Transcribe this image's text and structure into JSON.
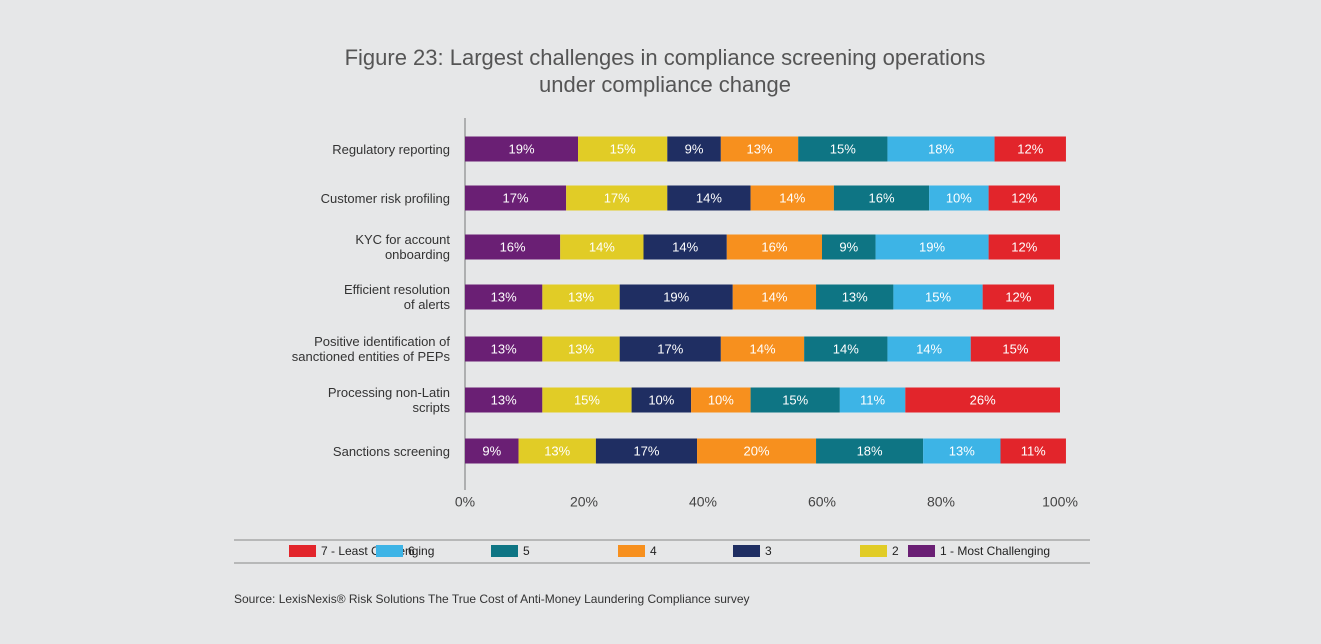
{
  "chart_data": {
    "type": "stacked-bar-horizontal",
    "title": "Figure 23: Largest challenges in compliance screening operations\nunder compliance change",
    "categories": [
      "Regulatory reporting",
      "Customer risk profiling",
      "KYC for account\nonboarding",
      "Efficient resolution\nof alerts",
      "Positive identification of\nsanctioned entities of PEPs",
      "Processing non-Latin\nscripts",
      "Sanctions screening"
    ],
    "series": [
      {
        "name": "1 - Most Challenging",
        "color": "#6a1f74",
        "values": [
          19,
          17,
          16,
          13,
          13,
          13,
          9
        ],
        "value_labels": [
          "19%",
          "17%",
          "16%",
          "13%",
          "13%",
          "13%",
          "9%"
        ]
      },
      {
        "name": "2",
        "color": "#e1cc26",
        "values": [
          15,
          17,
          14,
          13,
          13,
          15,
          13
        ],
        "value_labels": [
          "15%",
          "17%",
          "14%",
          "13%",
          "13%",
          "15%",
          "13%"
        ]
      },
      {
        "name": "3",
        "color": "#1f2e62",
        "values": [
          9,
          14,
          14,
          19,
          17,
          10,
          17
        ],
        "value_labels": [
          "9%",
          "14%",
          "14%",
          "19%",
          "17%",
          "10%",
          "17%"
        ]
      },
      {
        "name": "4",
        "color": "#f7901e",
        "values": [
          13,
          14,
          16,
          14,
          14,
          10,
          20
        ],
        "value_labels": [
          "13%",
          "14%",
          "16%",
          "14%",
          "14%",
          "10%",
          "20%"
        ]
      },
      {
        "name": "5",
        "color": "#0e7584",
        "values": [
          15,
          16,
          9,
          13,
          14,
          15,
          18
        ],
        "value_labels": [
          "15%",
          "16%",
          "9%",
          "13%",
          "14%",
          "15%",
          "18%"
        ]
      },
      {
        "name": "6",
        "color": "#3db4e6",
        "values": [
          18,
          10,
          19,
          15,
          14,
          11,
          13
        ],
        "value_labels": [
          "18%",
          "10%",
          "19%",
          "15%",
          "14%",
          "11%",
          "13%"
        ]
      },
      {
        "name": "7 - Least Challenging",
        "color": "#e2252b",
        "values": [
          12,
          12,
          12,
          12,
          15,
          26,
          11
        ],
        "value_labels": [
          "12%",
          "12%",
          "12%",
          "12%",
          "15%",
          "26%",
          "11%"
        ]
      }
    ],
    "xlim": [
      0,
      100
    ],
    "xticks": [
      {
        "value": 0,
        "label": "0%"
      },
      {
        "value": 20,
        "label": "20%"
      },
      {
        "value": 40,
        "label": "40%"
      },
      {
        "value": 60,
        "label": "60%"
      },
      {
        "value": 80,
        "label": "80%"
      },
      {
        "value": 100,
        "label": "100%"
      }
    ],
    "source": "Source: LexisNexis® Risk Solutions The True Cost of Anti-Money Laundering Compliance survey"
  }
}
